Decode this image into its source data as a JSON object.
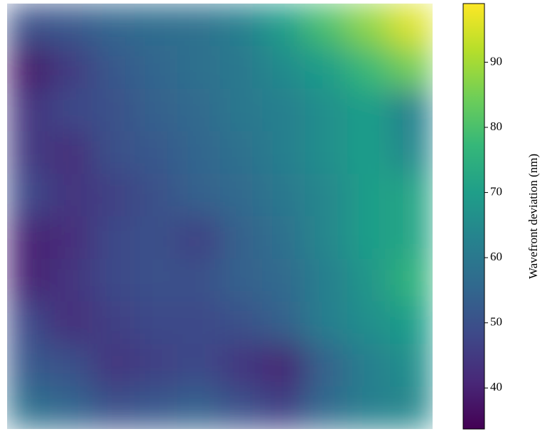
{
  "chart_data": {
    "type": "heatmap",
    "colormap": "viridis",
    "values": [
      [
        50,
        52,
        55,
        57,
        58,
        62,
        70,
        80,
        88,
        96
      ],
      [
        38,
        45,
        52,
        55,
        58,
        60,
        65,
        70,
        78,
        85
      ],
      [
        44,
        48,
        50,
        54,
        56,
        60,
        62,
        66,
        70,
        62
      ],
      [
        45,
        42,
        50,
        52,
        55,
        58,
        62,
        66,
        70,
        64
      ],
      [
        48,
        44,
        46,
        50,
        54,
        56,
        60,
        64,
        70,
        72
      ],
      [
        40,
        42,
        48,
        50,
        46,
        54,
        58,
        64,
        70,
        72
      ],
      [
        40,
        44,
        48,
        50,
        50,
        54,
        56,
        62,
        68,
        76
      ],
      [
        48,
        42,
        46,
        48,
        48,
        50,
        54,
        62,
        66,
        70
      ],
      [
        52,
        50,
        44,
        46,
        48,
        44,
        40,
        54,
        62,
        66
      ],
      [
        58,
        55,
        50,
        52,
        54,
        50,
        46,
        56,
        62,
        64
      ]
    ],
    "zlim": [
      33.7,
      99
    ],
    "zticks": [
      40,
      50,
      60,
      70,
      80,
      90
    ],
    "colorbar_label": "Wavefront deviation (nm)"
  }
}
